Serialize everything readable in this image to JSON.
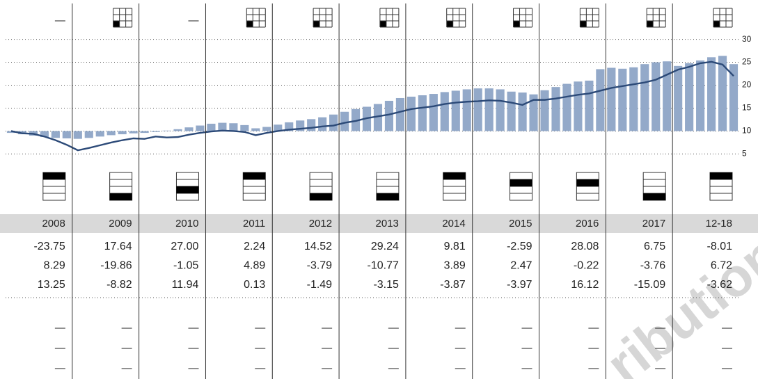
{
  "chart_data": {
    "type": "bar-line",
    "series": [
      {
        "type": "bar",
        "color": "#93a9c9",
        "values": [
          9.6,
          9.3,
          9,
          8.7,
          8.5,
          8.4,
          8.3,
          8.5,
          8.8,
          9.1,
          9.3,
          9.5,
          9.6,
          9.8,
          10.1,
          10.4,
          10.8,
          11.2,
          11.6,
          11.8,
          11.7,
          11.3,
          10.6,
          10.9,
          11.4,
          11.9,
          12.3,
          12.6,
          13,
          13.6,
          14.2,
          14.8,
          15.3,
          15.9,
          16.6,
          17.2,
          17.5,
          17.8,
          18.1,
          18.5,
          18.8,
          19.1,
          19.3,
          19.3,
          19.1,
          18.6,
          18.4,
          18,
          18.9,
          19.6,
          20.3,
          20.8,
          21,
          23.5,
          23.8,
          23.6,
          23.9,
          24.6,
          25,
          25.2,
          24.2,
          24.8,
          25.4,
          26.1,
          26.4,
          24.6
        ]
      },
      {
        "type": "line",
        "color": "#2c4a78",
        "values": [
          10,
          9.5,
          9.4,
          8.8,
          8,
          7,
          5.8,
          6.3,
          6.9,
          7.5,
          8,
          8.4,
          8.3,
          8.8,
          8.6,
          8.7,
          9.2,
          9.6,
          9.9,
          10.1,
          10,
          9.8,
          9.1,
          9.6,
          10,
          10.3,
          10.5,
          10.7,
          11,
          11.2,
          11.8,
          12.2,
          12.8,
          13.2,
          13.6,
          14.2,
          14.8,
          15.1,
          15.4,
          15.9,
          16.2,
          16.4,
          16.5,
          16.7,
          16.6,
          16.2,
          15.7,
          16.8,
          16.8,
          17.1,
          17.5,
          17.9,
          18.2,
          18.8,
          19.4,
          19.8,
          20.2,
          20.6,
          21.2,
          22.3,
          23.4,
          24,
          24.8,
          25.1,
          24.5,
          22
        ]
      }
    ],
    "baseline": 10,
    "ylim": [
      4,
      31
    ],
    "yticks": [
      30,
      25,
      20,
      15,
      10,
      5
    ],
    "grid": true
  },
  "style_box_row": [
    "—",
    null,
    "—",
    null,
    null,
    null,
    null,
    null,
    null,
    null,
    null
  ],
  "quartile_ranks": [
    1,
    4,
    3,
    1,
    4,
    4,
    1,
    2,
    2,
    4,
    1
  ],
  "table": {
    "header": [
      "2008",
      "2009",
      "2010",
      "2011",
      "2012",
      "2013",
      "2014",
      "2015",
      "2016",
      "2017",
      "12-18"
    ],
    "rows": [
      [
        "-23.75",
        "17.64",
        "27.00",
        "2.24",
        "14.52",
        "29.24",
        "9.81",
        "-2.59",
        "28.08",
        "6.75",
        "-8.01"
      ],
      [
        "8.29",
        "-19.86",
        "-1.05",
        "4.89",
        "-3.79",
        "-10.77",
        "3.89",
        "2.47",
        "-0.22",
        "-3.76",
        "6.72"
      ],
      [
        "13.25",
        "-8.82",
        "11.94",
        "0.13",
        "-1.49",
        "-3.15",
        "-3.87",
        "-3.97",
        "16.12",
        "-15.09",
        "-3.62"
      ]
    ],
    "empty_rows": [
      [
        "—",
        "—",
        "—",
        "—",
        "—",
        "—",
        "—",
        "—",
        "—",
        "—",
        "—"
      ],
      [
        "—",
        "—",
        "—",
        "—",
        "—",
        "—",
        "—",
        "—",
        "—",
        "—",
        "—"
      ],
      [
        "—",
        "—",
        "—",
        "—",
        "—",
        "—",
        "—",
        "—",
        "—",
        "—",
        "—"
      ]
    ]
  },
  "watermark": "ribution"
}
